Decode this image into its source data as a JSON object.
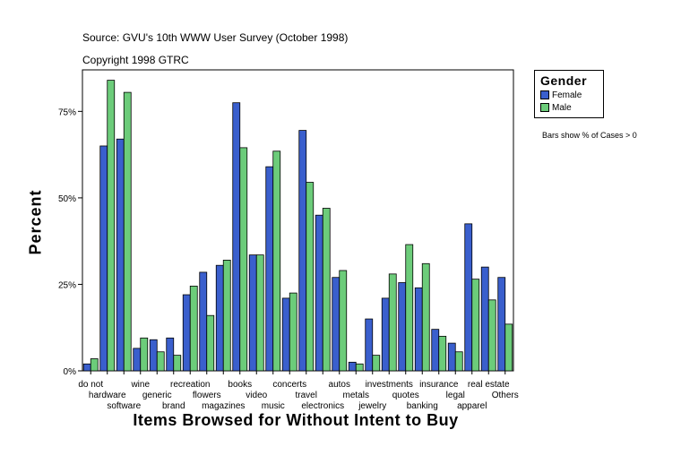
{
  "header": {
    "source": "Source: GVU's 10th WWW User Survey (October 1998)",
    "copyright": "Copyright 1998 GTRC"
  },
  "legend": {
    "title": "Gender",
    "female_label": "Female",
    "male_label": "Male",
    "note": "Bars show % of Cases > 0"
  },
  "colors": {
    "female": "#3a5fcd",
    "male": "#6ccc7a",
    "axis": "#000000"
  },
  "chart_data": {
    "type": "bar",
    "title": "",
    "xlabel": "Items Browsed for Without Intent to Buy",
    "ylabel": "Percent",
    "ylim": [
      0,
      87
    ],
    "yticks": [
      0,
      25,
      50,
      75
    ],
    "ytick_labels": [
      "0%",
      "25%",
      "50%",
      "75%"
    ],
    "categories": [
      "do not",
      "hardware",
      "software",
      "wine",
      "generic",
      "brand",
      "recreation",
      "flowers",
      "magazines",
      "books",
      "video",
      "music",
      "concerts",
      "travel",
      "electronics",
      "autos",
      "metals",
      "jewelry",
      "investments",
      "quotes",
      "banking",
      "insurance",
      "legal",
      "apparel",
      "real estate",
      "Others"
    ],
    "series": [
      {
        "name": "Female",
        "values": [
          2,
          65,
          67,
          6.5,
          9,
          9.5,
          22,
          28.5,
          30.5,
          77.5,
          33.5,
          59,
          21,
          69.5,
          45,
          27,
          2.5,
          15,
          21,
          25.5,
          24,
          12,
          8,
          42.5,
          30,
          27
        ]
      },
      {
        "name": "Male",
        "values": [
          3.5,
          84,
          80.5,
          9.5,
          5.5,
          4.5,
          24.5,
          16,
          32,
          64.5,
          33.5,
          63.5,
          22.5,
          54.5,
          47,
          29,
          2,
          4.5,
          28,
          36.5,
          31,
          10,
          5.5,
          26.5,
          20.5,
          13.5
        ]
      }
    ],
    "legend_position": "right",
    "grid": false
  }
}
